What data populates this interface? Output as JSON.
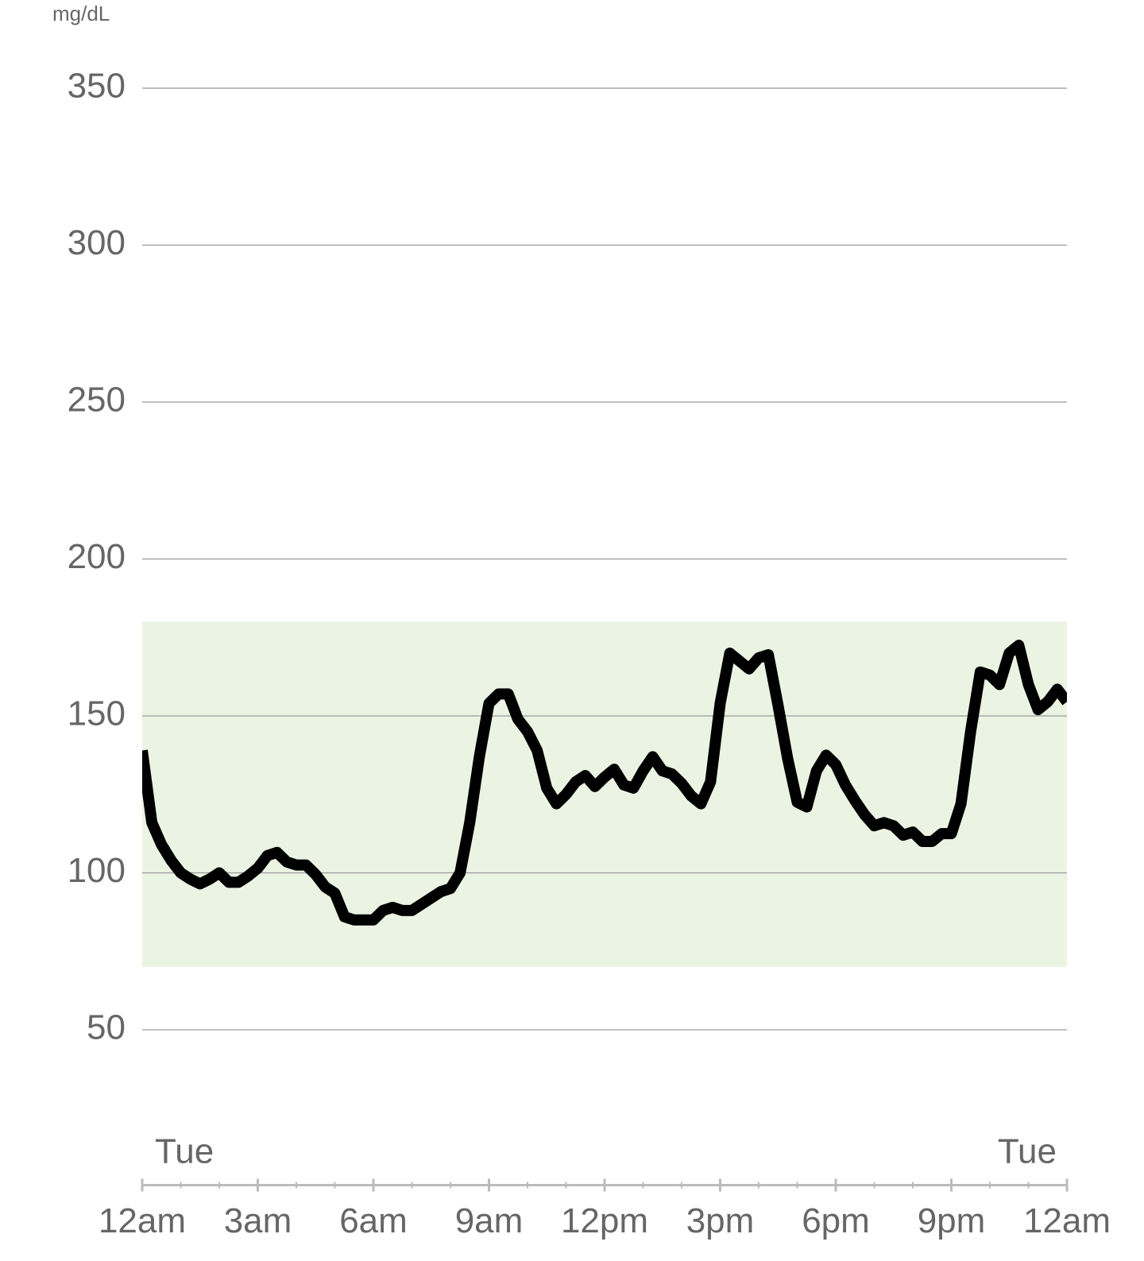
{
  "chart_data": {
    "type": "line",
    "y_unit": "mg/dL",
    "x": [
      0,
      0.25,
      0.5,
      0.75,
      1,
      1.25,
      1.5,
      1.75,
      2,
      2.25,
      2.5,
      2.75,
      3,
      3.25,
      3.5,
      3.75,
      4,
      4.25,
      4.5,
      4.75,
      5,
      5.25,
      5.5,
      5.75,
      6,
      6.25,
      6.5,
      6.75,
      7,
      7.25,
      7.5,
      7.75,
      8,
      8.25,
      8.5,
      8.75,
      9,
      9.25,
      9.5,
      9.75,
      10,
      10.25,
      10.5,
      10.75,
      11,
      11.25,
      11.5,
      11.75,
      12,
      12.25,
      12.5,
      12.75,
      13,
      13.25,
      13.5,
      13.75,
      14,
      14.25,
      14.5,
      14.75,
      15,
      15.25,
      15.5,
      15.75,
      16,
      16.25,
      16.5,
      16.75,
      17,
      17.25,
      17.5,
      17.75,
      18,
      18.25,
      18.5,
      18.75,
      19,
      19.25,
      19.5,
      19.75,
      20,
      20.25,
      20.5,
      20.75,
      21,
      21.25,
      21.5,
      21.75,
      22,
      22.25,
      22.5,
      22.75,
      23,
      23.25,
      23.5,
      23.75,
      24
    ],
    "series": [
      {
        "color": "#000000",
        "values": [
          139,
          116,
          109,
          104,
          100,
          98,
          96.5,
          98,
          100,
          97,
          97,
          99,
          101.5,
          105.5,
          106.5,
          103.5,
          102.5,
          102.5,
          99.5,
          95.5,
          93.5,
          86,
          85,
          85,
          85,
          88,
          89,
          88,
          88,
          90,
          92,
          94,
          95,
          100,
          116,
          137,
          154,
          157,
          157,
          149,
          145,
          139,
          127,
          122,
          125,
          129,
          131,
          127.5,
          130.5,
          133,
          128,
          127,
          132.5,
          137,
          132.5,
          131.5,
          128.5,
          124.5,
          122,
          129,
          154,
          170,
          167.5,
          165,
          168.5,
          169.5,
          153.5,
          136.5,
          122.5,
          121,
          132.5,
          137.5,
          134.5,
          128,
          123,
          118.5,
          115,
          116,
          115,
          112,
          113,
          110,
          110,
          112.5,
          112.5,
          122,
          145,
          164,
          163,
          160,
          170,
          172.5,
          160,
          152,
          154.5,
          158.5,
          154.5
        ]
      }
    ],
    "target_range": [
      70,
      180
    ],
    "target_color": "#ebf4e3",
    "ylim": [
      0,
      350
    ],
    "yticks": [
      50,
      100,
      150,
      200,
      250,
      300,
      350
    ],
    "grid": true,
    "xlim": [
      0,
      24
    ],
    "xticks": [
      {
        "value": 0,
        "label": "12am"
      },
      {
        "value": 3,
        "label": "3am"
      },
      {
        "value": 6,
        "label": "6am"
      },
      {
        "value": 9,
        "label": "9am"
      },
      {
        "value": 12,
        "label": "12pm"
      },
      {
        "value": 15,
        "label": "3pm"
      },
      {
        "value": 18,
        "label": "6pm"
      },
      {
        "value": 21,
        "label": "9pm"
      },
      {
        "value": 24,
        "label": "12am"
      }
    ],
    "annotations": [
      {
        "x": 0,
        "text": "Tue"
      },
      {
        "x": 24,
        "text": "Tue"
      }
    ]
  }
}
